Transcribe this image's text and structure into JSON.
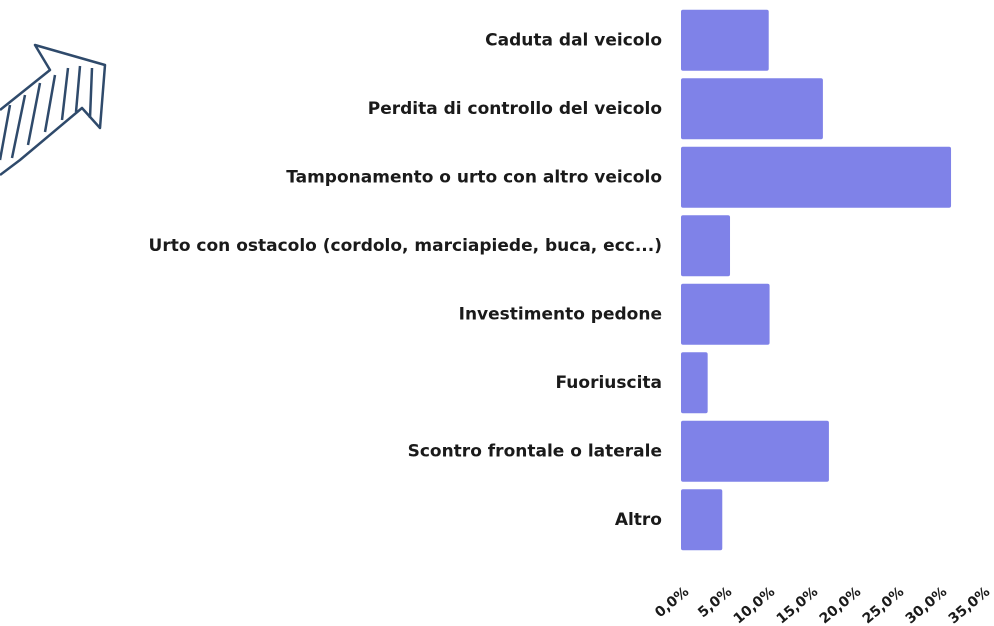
{
  "chart_data": {
    "type": "hbar",
    "categories": [
      "Caduta dal veicolo",
      "Perdita di controllo del veicolo",
      "Tamponamento o urto con altro veicolo",
      "Urto con ostacolo (cordolo, marciapiede, buca, ecc...)",
      "Investimento pedone",
      "Fuoriuscita",
      "Scontro frontale o laterale",
      "Altro"
    ],
    "values": [
      10.2,
      16.5,
      31.4,
      5.7,
      10.3,
      3.1,
      17.2,
      4.8
    ],
    "color": "#7f82e8",
    "xlim": [
      0,
      35
    ],
    "xticks": [
      {
        "value": 0,
        "label": "0,0%"
      },
      {
        "value": 5,
        "label": "5,0%"
      },
      {
        "value": 10,
        "label": "10,0%"
      },
      {
        "value": 15,
        "label": "15,0%"
      },
      {
        "value": 20,
        "label": "20,0%"
      },
      {
        "value": 25,
        "label": "25,0%"
      },
      {
        "value": 30,
        "label": "30,0%"
      },
      {
        "value": 35,
        "label": "35,0%"
      }
    ],
    "grid": false
  }
}
